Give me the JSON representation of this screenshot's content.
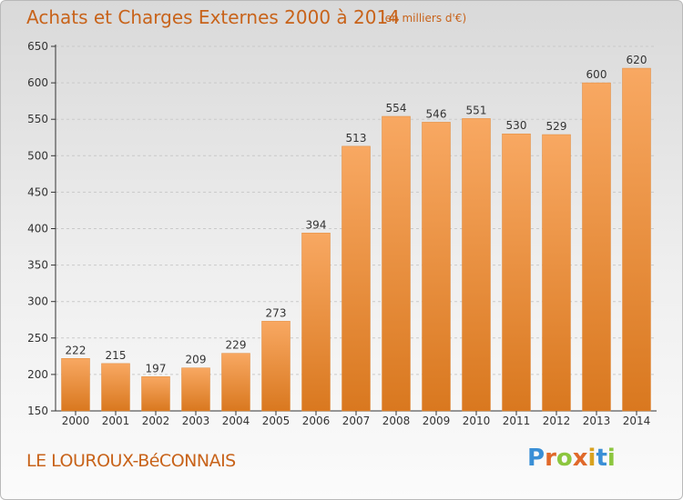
{
  "title": "Achats et Charges Externes 2000 à 2014",
  "subtitle": "(en milliers d'€)",
  "commune": "LE LOUROUX-BéCONNAIS",
  "logo": {
    "text": "Proxiti",
    "letter_colors": [
      "#3a8fd6",
      "#e0692a",
      "#8cc63f",
      "#e0692a",
      "#d8a21f",
      "#3a8fd6",
      "#8cc63f"
    ]
  },
  "colors": {
    "bar_top": "#f8a862",
    "bar_bottom": "#d9781f",
    "bar_stroke": "#e08a3c",
    "axis": "#333333",
    "grid": "#c9c9c9",
    "text": "#333333",
    "title": "#c8631a"
  },
  "chart_data": {
    "type": "bar",
    "categories": [
      "2000",
      "2001",
      "2002",
      "2003",
      "2004",
      "2005",
      "2006",
      "2007",
      "2008",
      "2009",
      "2010",
      "2011",
      "2012",
      "2013",
      "2014"
    ],
    "values": [
      222,
      215,
      197,
      209,
      229,
      273,
      394,
      513,
      554,
      546,
      551,
      530,
      529,
      600,
      620
    ],
    "yticks": [
      150,
      200,
      250,
      300,
      350,
      400,
      450,
      500,
      550,
      600,
      650
    ],
    "ylim": [
      150,
      650
    ],
    "grid": true,
    "xlabel": "",
    "ylabel": ""
  }
}
